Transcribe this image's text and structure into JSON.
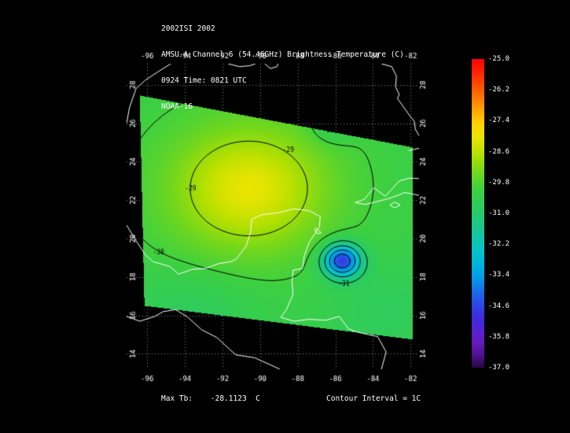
{
  "header": {
    "lines": [
      "2002ISI 2002",
      "AMSU-A Channel 6 (54.46GHz) Brightness Temperature (C)",
      "0924 Time: 0821 UTC",
      "NOAA-16"
    ]
  },
  "footer": {
    "max_tb": "Max Tb:    -28.1123  C",
    "contour_interval": "Contour Interval = 1C"
  },
  "chart_data": {
    "type": "heatmap",
    "title": "AMSU-A Channel 6 (54.46GHz) Brightness Temperature (C)",
    "dataset_label": "2002ISI 2002",
    "time_label": "0924 Time: 0821 UTC",
    "satellite": "NOAA-16",
    "units": "C",
    "max_tb_c": -28.1123,
    "contour_interval_c": 1,
    "axes": {
      "lon_ticks": [
        -96,
        -94,
        -92,
        -90,
        -88,
        -86,
        -84,
        -82
      ],
      "lat_ticks": [
        28,
        26,
        24,
        22,
        20,
        18,
        16,
        14
      ],
      "lon_range": [
        -97.1,
        -81.55
      ],
      "lat_range": [
        13.2,
        29.1
      ],
      "grid": "dotted"
    },
    "colorbar": {
      "max": -25.0,
      "min": -37.0,
      "ticks": [
        "-25.0",
        "-26.2",
        "-27.4",
        "-28.6",
        "-29.8",
        "-31.0",
        "-32.2",
        "-33.4",
        "-34.6",
        "-35.8",
        "-37.0"
      ],
      "stops": [
        [
          -25.0,
          "#ff0000"
        ],
        [
          -25.7,
          "#ff3000"
        ],
        [
          -26.4,
          "#ff6f00"
        ],
        [
          -27.0,
          "#ffa700"
        ],
        [
          -27.6,
          "#ffd900"
        ],
        [
          -28.1,
          "#e9e400"
        ],
        [
          -28.7,
          "#b5e000"
        ],
        [
          -29.4,
          "#72d71c"
        ],
        [
          -30.1,
          "#3bcf43"
        ],
        [
          -31.0,
          "#27ca6b"
        ],
        [
          -31.9,
          "#12c5a5"
        ],
        [
          -32.7,
          "#00c1d8"
        ],
        [
          -33.5,
          "#009ce5"
        ],
        [
          -34.3,
          "#2754e9"
        ],
        [
          -35.1,
          "#3c29e0"
        ],
        [
          -35.9,
          "#6a1dc5"
        ],
        [
          -36.6,
          "#4c1089"
        ],
        [
          -37.0,
          "#250742"
        ]
      ]
    },
    "swath_polygon_lonlat": [
      [
        -96.4,
        27.45
      ],
      [
        -81.9,
        24.75
      ],
      [
        -81.9,
        14.75
      ],
      [
        -96.15,
        16.5
      ]
    ],
    "field": {
      "base": -30.15,
      "blobs": [
        {
          "lon": -90.6,
          "lat": 22.6,
          "amp": 2.05,
          "sx": 2.9,
          "sy": 2.3
        },
        {
          "lon": -85.65,
          "lat": 18.85,
          "amp": -4.6,
          "sx": 0.7,
          "sy": 0.6
        },
        {
          "lon": -86.25,
          "lat": 25.7,
          "amp": -0.5,
          "sx": 0.85,
          "sy": 0.6
        },
        {
          "lon": -89.0,
          "lat": 27.4,
          "amp": -0.4,
          "sx": 0.8,
          "sy": 0.55
        },
        {
          "lon": -93.6,
          "lat": 15.9,
          "amp": -0.55,
          "sx": 2.4,
          "sy": 1.6
        },
        {
          "lon": -83.4,
          "lat": 16.2,
          "amp": -0.5,
          "sx": 2.2,
          "sy": 1.9
        }
      ]
    },
    "contour_levels": [
      -34,
      -33,
      -32,
      -31,
      -30,
      -29
    ],
    "contour_labels": [
      {
        "text": "-29",
        "lon": -88.5,
        "lat": 24.5
      },
      {
        "text": "-29",
        "lon": -93.7,
        "lat": 22.5
      },
      {
        "text": "-30",
        "lon": -86.35,
        "lat": 25.55
      },
      {
        "text": "-30",
        "lon": -95.4,
        "lat": 19.2
      },
      {
        "text": "-31",
        "lon": -85.55,
        "lat": 17.55
      }
    ],
    "coastlines": [
      {
        "name": "texas-coast",
        "points": [
          [
            -97.1,
            26.0
          ],
          [
            -96.95,
            26.8
          ],
          [
            -96.6,
            27.8
          ],
          [
            -96.1,
            28.25
          ],
          [
            -95.4,
            28.7
          ],
          [
            -94.75,
            29.1
          ]
        ]
      },
      {
        "name": "louisiana-marsh",
        "points": [
          [
            -91.7,
            29.1
          ],
          [
            -91.1,
            28.95
          ],
          [
            -90.55,
            29.0
          ],
          [
            -90.25,
            29.1
          ]
        ]
      },
      {
        "name": "mississippi-delta",
        "points": [
          [
            -89.75,
            29.1
          ],
          [
            -89.45,
            28.85
          ],
          [
            -89.1,
            28.95
          ],
          [
            -89.05,
            29.1
          ]
        ]
      },
      {
        "name": "florida-west-coast",
        "points": [
          [
            -83.55,
            29.1
          ],
          [
            -83.0,
            28.95
          ],
          [
            -82.75,
            28.45
          ],
          [
            -82.8,
            27.9
          ],
          [
            -82.6,
            27.5
          ],
          [
            -82.7,
            27.3
          ],
          [
            -82.3,
            26.75
          ],
          [
            -82.05,
            26.4
          ],
          [
            -81.8,
            26.1
          ],
          [
            -81.75,
            25.7
          ],
          [
            -81.55,
            25.35
          ]
        ]
      },
      {
        "name": "florida-keys",
        "points": [
          [
            -81.55,
            24.7
          ],
          [
            -82.1,
            24.58
          ]
        ]
      },
      {
        "name": "cuba",
        "points": [
          [
            -81.55,
            23.12
          ],
          [
            -82.05,
            23.15
          ],
          [
            -82.6,
            23.0
          ],
          [
            -83.35,
            22.2
          ],
          [
            -83.95,
            22.65
          ],
          [
            -84.45,
            22.05
          ],
          [
            -84.95,
            21.87
          ],
          [
            -84.4,
            21.78
          ],
          [
            -83.9,
            21.9
          ],
          [
            -83.1,
            22.1
          ],
          [
            -82.3,
            22.4
          ],
          [
            -81.55,
            22.25
          ]
        ]
      },
      {
        "name": "isla-juventud",
        "points": [
          [
            -82.55,
            21.75
          ],
          [
            -82.85,
            21.6
          ],
          [
            -83.1,
            21.75
          ],
          [
            -82.85,
            21.9
          ],
          [
            -82.55,
            21.75
          ]
        ]
      },
      {
        "name": "yucatan-central-america",
        "points": [
          [
            -97.1,
            20.7
          ],
          [
            -96.6,
            19.9
          ],
          [
            -96.1,
            19.15
          ],
          [
            -95.7,
            18.8
          ],
          [
            -94.8,
            18.55
          ],
          [
            -94.35,
            18.15
          ],
          [
            -93.6,
            18.4
          ],
          [
            -92.9,
            18.45
          ],
          [
            -92.2,
            18.7
          ],
          [
            -91.55,
            18.8
          ],
          [
            -91.25,
            18.95
          ],
          [
            -90.75,
            19.6
          ],
          [
            -90.5,
            20.35
          ],
          [
            -90.45,
            21.0
          ],
          [
            -89.9,
            21.25
          ],
          [
            -89.0,
            21.35
          ],
          [
            -88.2,
            21.55
          ],
          [
            -87.4,
            21.45
          ],
          [
            -86.8,
            21.15
          ],
          [
            -86.85,
            20.6
          ],
          [
            -87.4,
            19.8
          ],
          [
            -87.65,
            19.1
          ],
          [
            -87.75,
            18.45
          ],
          [
            -88.25,
            18.35
          ],
          [
            -88.3,
            17.8
          ],
          [
            -88.25,
            17.1
          ],
          [
            -88.6,
            16.3
          ],
          [
            -88.9,
            15.9
          ],
          [
            -88.2,
            15.7
          ],
          [
            -87.4,
            15.8
          ],
          [
            -86.5,
            15.75
          ],
          [
            -85.8,
            15.95
          ],
          [
            -85.3,
            15.3
          ],
          [
            -84.9,
            15.15
          ],
          [
            -84.25,
            15.0
          ],
          [
            -83.75,
            14.9
          ],
          [
            -83.3,
            14.1
          ],
          [
            -83.55,
            13.2
          ]
        ]
      },
      {
        "name": "cozumel",
        "points": [
          [
            -87.05,
            20.55
          ],
          [
            -86.75,
            20.3
          ],
          [
            -86.95,
            20.25
          ],
          [
            -87.1,
            20.45
          ],
          [
            -87.05,
            20.55
          ]
        ]
      },
      {
        "name": "pacific-coast",
        "points": [
          [
            -97.1,
            15.95
          ],
          [
            -96.4,
            15.7
          ],
          [
            -95.6,
            15.95
          ],
          [
            -95.15,
            16.2
          ],
          [
            -94.5,
            16.3
          ],
          [
            -93.9,
            15.95
          ],
          [
            -93.1,
            15.25
          ],
          [
            -92.3,
            14.85
          ],
          [
            -91.3,
            13.95
          ],
          [
            -90.3,
            13.8
          ],
          [
            -89.5,
            13.45
          ],
          [
            -88.95,
            13.2
          ]
        ]
      }
    ],
    "colors": {
      "background": "#000000",
      "grid": "#8a8a8a",
      "coast": "#ffffff",
      "contour": "#000000",
      "tick_text": "#ffffff"
    }
  }
}
